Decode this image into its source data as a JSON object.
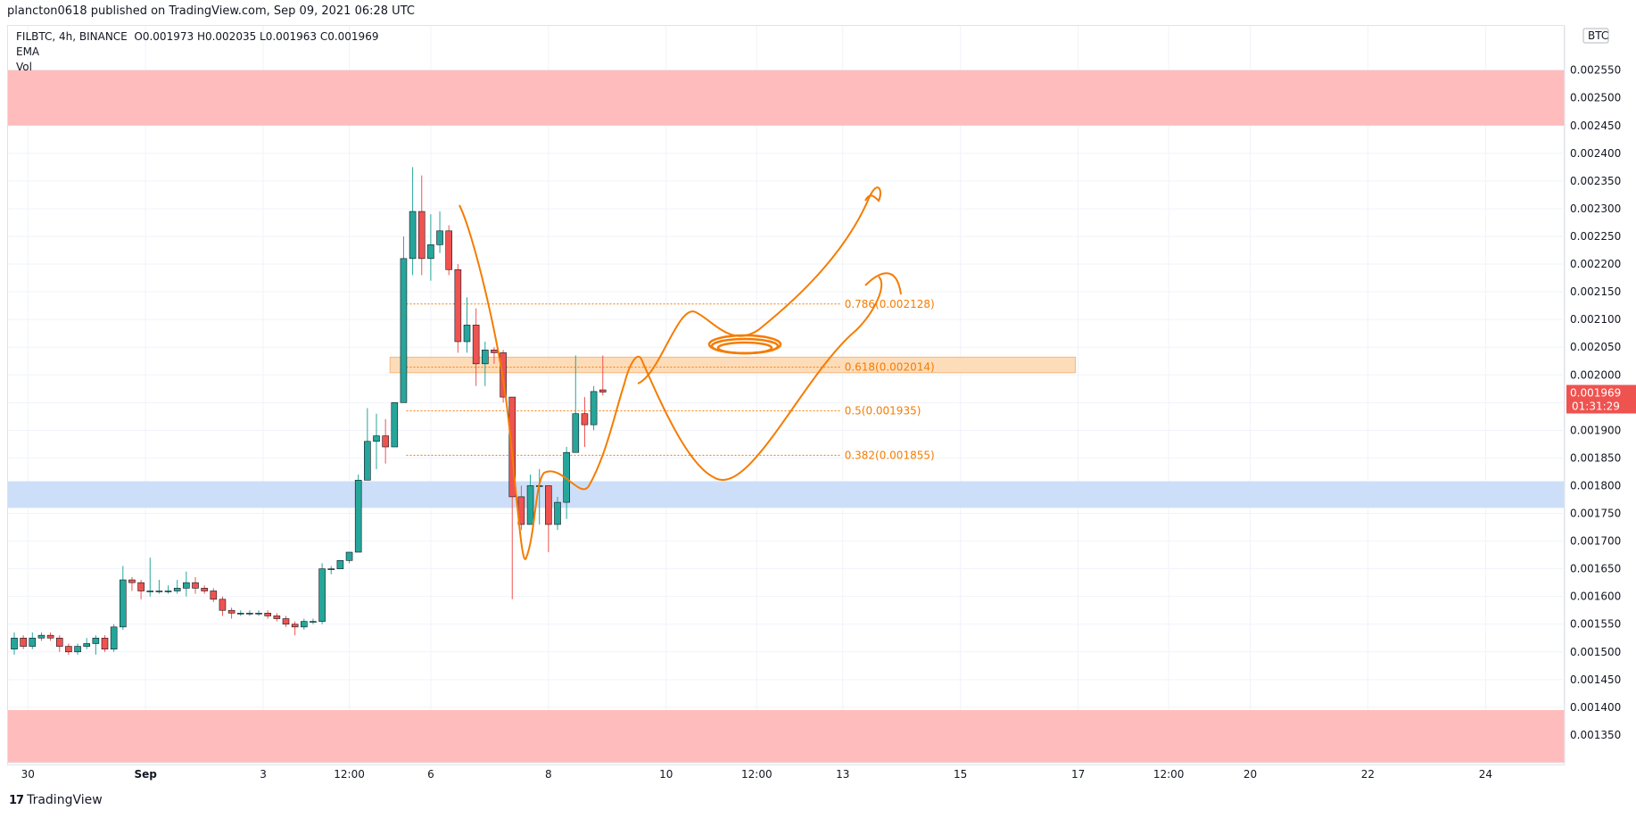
{
  "header": {
    "published": "plancton0618 published on TradingView.com, Sep 09, 2021 06:28 UTC"
  },
  "legend": {
    "symbol": "FILBTC, 4h, BINANCE",
    "open": "O0.001973",
    "high": "H0.002035",
    "low": "L0.001963",
    "close": "C0.001969",
    "ema": "EMA",
    "vol": "Vol"
  },
  "price_axis": {
    "currency": "BTC",
    "last_price": "0.001969",
    "countdown": "01:31:29",
    "colors": {
      "last_price_bg": "#ef5350"
    }
  },
  "footer": {
    "brand": "TradingView"
  },
  "chart_data": {
    "type": "candlestick",
    "symbol": "FILBTC",
    "interval": "4h",
    "exchange": "BINANCE",
    "ylim": [
      0.0013,
      0.00263
    ],
    "y_ticks": [
      "0.001350",
      "0.001400",
      "0.001450",
      "0.001500",
      "0.001550",
      "0.001600",
      "0.001650",
      "0.001700",
      "0.001750",
      "0.001800",
      "0.001850",
      "0.001900",
      "0.001950",
      "0.002000",
      "0.002050",
      "0.002100",
      "0.002150",
      "0.002200",
      "0.002250",
      "0.002300",
      "0.002350",
      "0.002400",
      "0.002450",
      "0.002500",
      "0.002550"
    ],
    "x_ticks": [
      {
        "label": "30",
        "bar": 1.5
      },
      {
        "label": "Sep",
        "bar": 14.5
      },
      {
        "label": "3",
        "bar": 27.5
      },
      {
        "label": "12:00",
        "bar": 37
      },
      {
        "label": "6",
        "bar": 46
      },
      {
        "label": "8",
        "bar": 59
      },
      {
        "label": "10",
        "bar": 72
      },
      {
        "label": "12:00",
        "bar": 82
      },
      {
        "label": "13",
        "bar": 91.5
      },
      {
        "label": "15",
        "bar": 104.5
      },
      {
        "label": "17",
        "bar": 117.5
      },
      {
        "label": "12:00",
        "bar": 127.5
      },
      {
        "label": "20",
        "bar": 136.5
      },
      {
        "label": "22",
        "bar": 149.5
      },
      {
        "label": "24",
        "bar": 162.5
      }
    ],
    "candles": [
      [
        0.001505,
        0.001535,
        0.001495,
        0.001525
      ],
      [
        0.001525,
        0.00153,
        0.001505,
        0.00151
      ],
      [
        0.00151,
        0.001535,
        0.001505,
        0.001525
      ],
      [
        0.001525,
        0.001535,
        0.00152,
        0.00153
      ],
      [
        0.00153,
        0.001535,
        0.00152,
        0.001525
      ],
      [
        0.001525,
        0.00153,
        0.0015,
        0.00151
      ],
      [
        0.00151,
        0.001515,
        0.001495,
        0.0015
      ],
      [
        0.0015,
        0.001515,
        0.001495,
        0.00151
      ],
      [
        0.00151,
        0.001525,
        0.001505,
        0.001515
      ],
      [
        0.001515,
        0.00153,
        0.001495,
        0.001525
      ],
      [
        0.001525,
        0.00153,
        0.0015,
        0.001505
      ],
      [
        0.001505,
        0.00155,
        0.0015,
        0.001545
      ],
      [
        0.001545,
        0.001655,
        0.00154,
        0.00163
      ],
      [
        0.00163,
        0.001635,
        0.00161,
        0.001625
      ],
      [
        0.001625,
        0.00163,
        0.001595,
        0.00161
      ],
      [
        0.00161,
        0.00167,
        0.0016,
        0.00161
      ],
      [
        0.00161,
        0.00163,
        0.001605,
        0.00161
      ],
      [
        0.00161,
        0.00162,
        0.001605,
        0.00161
      ],
      [
        0.00161,
        0.00163,
        0.001605,
        0.001615
      ],
      [
        0.001615,
        0.001645,
        0.0016,
        0.001625
      ],
      [
        0.001625,
        0.001635,
        0.001605,
        0.001615
      ],
      [
        0.001615,
        0.00162,
        0.001605,
        0.00161
      ],
      [
        0.00161,
        0.001615,
        0.00159,
        0.001595
      ],
      [
        0.001595,
        0.0016,
        0.001565,
        0.001575
      ],
      [
        0.001575,
        0.00158,
        0.00156,
        0.00157
      ],
      [
        0.00157,
        0.001575,
        0.001565,
        0.00157
      ],
      [
        0.00157,
        0.001575,
        0.001565,
        0.00157
      ],
      [
        0.00157,
        0.001575,
        0.001565,
        0.00157
      ],
      [
        0.00157,
        0.001575,
        0.00156,
        0.001565
      ],
      [
        0.001565,
        0.00157,
        0.001555,
        0.00156
      ],
      [
        0.00156,
        0.001565,
        0.001545,
        0.00155
      ],
      [
        0.00155,
        0.001555,
        0.00153,
        0.001545
      ],
      [
        0.001545,
        0.00156,
        0.00154,
        0.001555
      ],
      [
        0.001555,
        0.00156,
        0.00155,
        0.001555
      ],
      [
        0.001555,
        0.00166,
        0.00155,
        0.00165
      ],
      [
        0.00165,
        0.001655,
        0.00164,
        0.00165
      ],
      [
        0.00165,
        0.001665,
        0.00165,
        0.001665
      ],
      [
        0.001665,
        0.00168,
        0.00166,
        0.00168
      ],
      [
        0.00168,
        0.00182,
        0.00168,
        0.00181
      ],
      [
        0.00181,
        0.00194,
        0.00181,
        0.00188
      ],
      [
        0.00188,
        0.00193,
        0.00183,
        0.00189
      ],
      [
        0.00189,
        0.00192,
        0.00184,
        0.00187
      ],
      [
        0.00187,
        0.00195,
        0.00187,
        0.00195
      ],
      [
        0.00195,
        0.00225,
        0.00195,
        0.00221
      ],
      [
        0.00221,
        0.002375,
        0.00218,
        0.002295
      ],
      [
        0.002295,
        0.00236,
        0.00218,
        0.00221
      ],
      [
        0.00221,
        0.00229,
        0.00217,
        0.002235
      ],
      [
        0.002235,
        0.002295,
        0.00222,
        0.00226
      ],
      [
        0.00226,
        0.00227,
        0.00218,
        0.00219
      ],
      [
        0.00219,
        0.0022,
        0.00204,
        0.00206
      ],
      [
        0.00206,
        0.00214,
        0.00204,
        0.00209
      ],
      [
        0.00209,
        0.00212,
        0.00198,
        0.00202
      ],
      [
        0.00202,
        0.00206,
        0.00198,
        0.002045
      ],
      [
        0.002045,
        0.00205,
        0.00202,
        0.00204
      ],
      [
        0.00204,
        0.002045,
        0.00195,
        0.00196
      ],
      [
        0.00196,
        0.00196,
        0.001595,
        0.00178
      ],
      [
        0.00178,
        0.0018,
        0.00172,
        0.00173
      ],
      [
        0.00173,
        0.00182,
        0.00173,
        0.0018
      ],
      [
        0.0018,
        0.00183,
        0.00173,
        0.0018
      ],
      [
        0.0018,
        0.0018,
        0.00168,
        0.00173
      ],
      [
        0.00173,
        0.00178,
        0.00172,
        0.00177
      ],
      [
        0.00177,
        0.00187,
        0.00174,
        0.00186
      ],
      [
        0.00186,
        0.002035,
        0.00186,
        0.00193
      ],
      [
        0.00193,
        0.00196,
        0.00187,
        0.00191
      ],
      [
        0.00191,
        0.00198,
        0.0019,
        0.00197
      ],
      [
        0.001973,
        0.002035,
        0.001963,
        0.001969
      ]
    ],
    "zones": [
      {
        "name": "upper-resistance-zone",
        "from": 0.00245,
        "to": 0.00255,
        "color": "#ffbcbc"
      },
      {
        "name": "lower-red-zone",
        "from": 0.0013,
        "to": 0.001395,
        "color": "#ffbcbc"
      },
      {
        "name": "support-zone",
        "from": 0.00176,
        "to": 0.001808,
        "color": "#cddff8"
      },
      {
        "name": "fib-zone",
        "from": 0.002004,
        "to": 0.002032,
        "color": "#fddcb9",
        "start_bar": 41.5,
        "end_bar": 117.2
      }
    ],
    "fib_levels": [
      {
        "label": "0.786(0.002128)",
        "value": 0.002128
      },
      {
        "label": "0.618(0.002014)",
        "value": 0.002014
      },
      {
        "label": "0.5(0.001935)",
        "value": 0.001935
      },
      {
        "label": "0.382(0.001855)",
        "value": 0.001855
      }
    ],
    "colors": {
      "up": "#26a69a",
      "down": "#ef5350",
      "drawing": "#f57c00",
      "grid": "#f0f3fa"
    }
  }
}
